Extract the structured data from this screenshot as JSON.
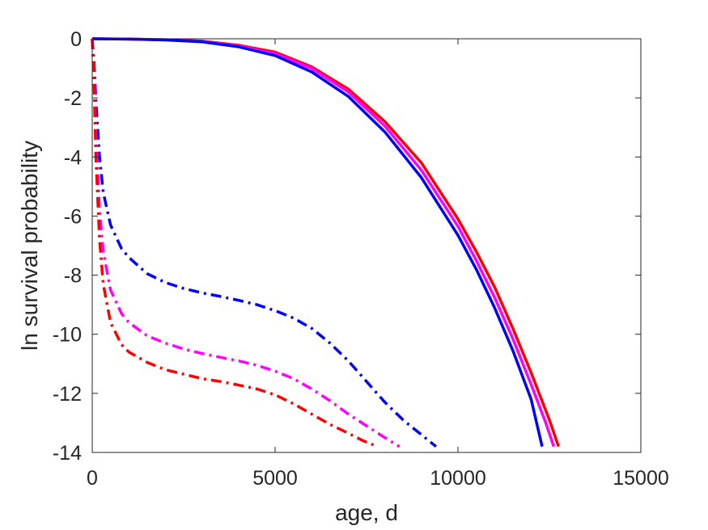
{
  "chart_data": {
    "type": "line",
    "title": "",
    "xlabel": "age, d",
    "ylabel": "ln survival probability",
    "xlim": [
      0,
      15000
    ],
    "ylim": [
      -14,
      0
    ],
    "xticks": [
      0,
      5000,
      10000,
      15000
    ],
    "yticks": [
      0,
      -2,
      -4,
      -6,
      -8,
      -10,
      -12,
      -14
    ],
    "grid": false,
    "legend": "none",
    "series": [
      {
        "color": "#ff0000",
        "style": "solid",
        "x": [
          0,
          1000,
          2000,
          3000,
          4000,
          5000,
          6000,
          7000,
          8000,
          9000,
          10000,
          10500,
          11000,
          11500,
          12000,
          12500,
          12750
        ],
        "y": [
          0,
          -0.01,
          -0.03,
          -0.08,
          -0.22,
          -0.45,
          -0.95,
          -1.7,
          -2.8,
          -4.2,
          -6.1,
          -7.2,
          -8.4,
          -9.8,
          -11.3,
          -12.9,
          -13.8
        ]
      },
      {
        "color": "#ff00ff",
        "style": "solid",
        "x": [
          0,
          1000,
          2000,
          3000,
          4000,
          5000,
          6000,
          7000,
          8000,
          9000,
          10000,
          10500,
          11000,
          11500,
          12000,
          12400,
          12620
        ],
        "y": [
          0,
          -0.01,
          -0.03,
          -0.09,
          -0.24,
          -0.5,
          -1.0,
          -1.8,
          -2.95,
          -4.45,
          -6.35,
          -7.5,
          -8.75,
          -10.15,
          -11.7,
          -13.0,
          -13.8
        ]
      },
      {
        "color": "#0000ff",
        "style": "solid",
        "x": [
          0,
          1000,
          2000,
          3000,
          4000,
          5000,
          6000,
          7000,
          8000,
          9000,
          10000,
          10500,
          11000,
          11500,
          12000,
          12300
        ],
        "y": [
          0,
          -0.01,
          -0.04,
          -0.1,
          -0.27,
          -0.57,
          -1.12,
          -1.95,
          -3.15,
          -4.7,
          -6.65,
          -7.8,
          -9.1,
          -10.55,
          -12.2,
          -13.8
        ]
      },
      {
        "color": "#0000ff",
        "style": "dashdot",
        "x": [
          0,
          50,
          100,
          200,
          300,
          500,
          800,
          1000,
          1500,
          2000,
          2500,
          3000,
          3500,
          4000,
          4500,
          5000,
          5500,
          6000,
          6500,
          7000,
          7500,
          8000,
          8500,
          9000,
          9400
        ],
        "y": [
          0,
          -0.8,
          -2.1,
          -4.0,
          -5.2,
          -6.3,
          -7.1,
          -7.4,
          -7.95,
          -8.25,
          -8.45,
          -8.6,
          -8.72,
          -8.85,
          -9.0,
          -9.2,
          -9.45,
          -9.8,
          -10.3,
          -10.9,
          -11.6,
          -12.3,
          -12.9,
          -13.4,
          -13.8
        ]
      },
      {
        "color": "#ff00ff",
        "style": "dashdot",
        "x": [
          0,
          50,
          100,
          200,
          300,
          500,
          800,
          1000,
          1500,
          2000,
          2500,
          3000,
          3500,
          4000,
          4500,
          5000,
          5500,
          6000,
          6500,
          7000,
          7500,
          8000,
          8400
        ],
        "y": [
          0,
          -1.2,
          -3.2,
          -5.8,
          -7.2,
          -8.5,
          -9.3,
          -9.6,
          -10.05,
          -10.3,
          -10.5,
          -10.65,
          -10.78,
          -10.9,
          -11.05,
          -11.25,
          -11.5,
          -11.85,
          -12.25,
          -12.7,
          -13.1,
          -13.5,
          -13.8
        ]
      },
      {
        "color": "#ff0000",
        "style": "dashdot",
        "x": [
          0,
          50,
          100,
          200,
          300,
          500,
          800,
          1000,
          1500,
          2000,
          2500,
          3000,
          3500,
          4000,
          4500,
          5000,
          5500,
          6000,
          6500,
          7000,
          7400,
          7800
        ],
        "y": [
          0,
          -1.6,
          -4.0,
          -6.8,
          -8.3,
          -9.6,
          -10.35,
          -10.6,
          -10.95,
          -11.2,
          -11.35,
          -11.5,
          -11.6,
          -11.72,
          -11.85,
          -12.05,
          -12.35,
          -12.7,
          -13.05,
          -13.35,
          -13.6,
          -13.8
        ]
      }
    ]
  }
}
